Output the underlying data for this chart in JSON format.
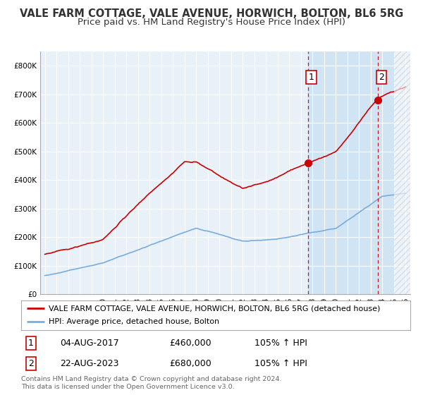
{
  "title": "VALE FARM COTTAGE, VALE AVENUE, HORWICH, BOLTON, BL6 5RG",
  "subtitle": "Price paid vs. HM Land Registry's House Price Index (HPI)",
  "ylim": [
    0,
    850000
  ],
  "yticks": [
    0,
    100000,
    200000,
    300000,
    400000,
    500000,
    600000,
    700000,
    800000
  ],
  "ytick_labels": [
    "£0",
    "£100K",
    "£200K",
    "£300K",
    "£400K",
    "£500K",
    "£600K",
    "£700K",
    "£800K"
  ],
  "sale1_year": 2017.59,
  "sale1_price": 460000,
  "sale1_label": "1",
  "sale1_date": "04-AUG-2017",
  "sale1_hpi": "105% ↑ HPI",
  "sale2_year": 2023.64,
  "sale2_price": 680000,
  "sale2_label": "2",
  "sale2_date": "22-AUG-2023",
  "sale2_hpi": "105% ↑ HPI",
  "red_line_color": "#cc0000",
  "blue_line_color": "#7aacdb",
  "background_plot_color": "#e8f0f8",
  "shade_color": "#d0e4f4",
  "grid_color": "#ffffff",
  "vline_color": "#cc0000",
  "legend_label_red": "VALE FARM COTTAGE, VALE AVENUE, HORWICH, BOLTON, BL6 5RG (detached house)",
  "legend_label_blue": "HPI: Average price, detached house, Bolton",
  "footer": "Contains HM Land Registry data © Crown copyright and database right 2024.\nThis data is licensed under the Open Government Licence v3.0.",
  "title_fontsize": 10.5,
  "subtitle_fontsize": 9.5,
  "tick_fontsize": 7.5,
  "legend_fontsize": 8,
  "table_fontsize": 9
}
